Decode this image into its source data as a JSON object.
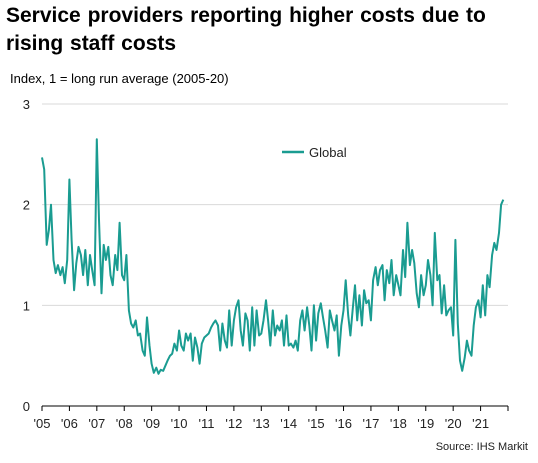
{
  "chart_data": {
    "type": "line",
    "title": "Service providers reporting higher costs due to rising staff costs",
    "ylabel": "Index, 1 = long run average (2005-20)",
    "source": "Source: IHS Markit",
    "ylim": [
      0,
      3
    ],
    "yticks": [
      "0",
      "1",
      "2",
      "3"
    ],
    "xlim": [
      2005,
      2021.9
    ],
    "xticks": [
      "'05",
      "'06",
      "'07",
      "'08",
      "'09",
      "'10",
      "'11",
      "'12",
      "'13",
      "'14",
      "'15",
      "'16",
      "'17",
      "'18",
      "'19",
      "'20",
      "'21"
    ],
    "grid": true,
    "legend_position": "top-center",
    "series": [
      {
        "name": "Global",
        "color": "#1a9c91",
        "x": [
          2005.0,
          2005.08,
          2005.17,
          2005.25,
          2005.33,
          2005.42,
          2005.5,
          2005.58,
          2005.67,
          2005.75,
          2005.83,
          2005.92,
          2006.0,
          2006.08,
          2006.17,
          2006.25,
          2006.33,
          2006.42,
          2006.5,
          2006.58,
          2006.67,
          2006.75,
          2006.83,
          2006.92,
          2007.0,
          2007.08,
          2007.17,
          2007.25,
          2007.33,
          2007.42,
          2007.5,
          2007.58,
          2007.67,
          2007.75,
          2007.83,
          2007.92,
          2008.0,
          2008.08,
          2008.17,
          2008.25,
          2008.33,
          2008.42,
          2008.5,
          2008.58,
          2008.67,
          2008.75,
          2008.83,
          2008.92,
          2009.0,
          2009.08,
          2009.17,
          2009.25,
          2009.33,
          2009.42,
          2009.5,
          2009.58,
          2009.67,
          2009.75,
          2009.83,
          2009.92,
          2010.0,
          2010.08,
          2010.17,
          2010.25,
          2010.33,
          2010.42,
          2010.5,
          2010.58,
          2010.67,
          2010.75,
          2010.83,
          2010.92,
          2011.0,
          2011.08,
          2011.17,
          2011.25,
          2011.33,
          2011.42,
          2011.5,
          2011.58,
          2011.67,
          2011.75,
          2011.83,
          2011.92,
          2012.0,
          2012.08,
          2012.17,
          2012.25,
          2012.33,
          2012.42,
          2012.5,
          2012.58,
          2012.67,
          2012.75,
          2012.83,
          2012.92,
          2013.0,
          2013.08,
          2013.17,
          2013.25,
          2013.33,
          2013.42,
          2013.5,
          2013.58,
          2013.67,
          2013.75,
          2013.83,
          2013.92,
          2014.0,
          2014.08,
          2014.17,
          2014.25,
          2014.33,
          2014.42,
          2014.5,
          2014.58,
          2014.67,
          2014.75,
          2014.83,
          2014.92,
          2015.0,
          2015.08,
          2015.17,
          2015.25,
          2015.33,
          2015.42,
          2015.5,
          2015.58,
          2015.67,
          2015.75,
          2015.83,
          2015.92,
          2016.0,
          2016.08,
          2016.17,
          2016.25,
          2016.33,
          2016.42,
          2016.5,
          2016.58,
          2016.67,
          2016.75,
          2016.83,
          2016.92,
          2017.0,
          2017.08,
          2017.17,
          2017.25,
          2017.33,
          2017.42,
          2017.5,
          2017.58,
          2017.67,
          2017.75,
          2017.83,
          2017.92,
          2018.0,
          2018.08,
          2018.17,
          2018.25,
          2018.33,
          2018.42,
          2018.5,
          2018.58,
          2018.67,
          2018.75,
          2018.83,
          2018.92,
          2019.0,
          2019.08,
          2019.17,
          2019.25,
          2019.33,
          2019.42,
          2019.5,
          2019.58,
          2019.67,
          2019.75,
          2019.83,
          2019.92,
          2020.0,
          2020.08,
          2020.17,
          2020.25,
          2020.33,
          2020.42,
          2020.5,
          2020.58,
          2020.67,
          2020.75,
          2020.83,
          2020.92,
          2021.0,
          2021.08,
          2021.17,
          2021.25,
          2021.33,
          2021.42,
          2021.5,
          2021.58,
          2021.67,
          2021.75,
          2021.83
        ],
        "values": [
          2.47,
          2.35,
          1.6,
          1.75,
          2.0,
          1.45,
          1.32,
          1.4,
          1.3,
          1.38,
          1.22,
          1.45,
          2.25,
          1.65,
          1.15,
          1.42,
          1.58,
          1.5,
          1.3,
          1.55,
          1.2,
          1.5,
          1.35,
          1.2,
          2.65,
          1.85,
          1.12,
          1.6,
          1.45,
          1.58,
          1.3,
          1.2,
          1.5,
          1.35,
          1.82,
          1.3,
          1.25,
          1.5,
          0.95,
          0.82,
          0.78,
          0.85,
          0.7,
          0.72,
          0.55,
          0.5,
          0.88,
          0.6,
          0.42,
          0.33,
          0.38,
          0.32,
          0.36,
          0.35,
          0.4,
          0.45,
          0.5,
          0.52,
          0.62,
          0.55,
          0.75,
          0.6,
          0.55,
          0.72,
          0.65,
          0.72,
          0.45,
          0.68,
          0.58,
          0.42,
          0.62,
          0.68,
          0.7,
          0.72,
          0.78,
          0.82,
          0.85,
          0.8,
          0.55,
          0.82,
          0.65,
          0.58,
          0.95,
          0.6,
          0.85,
          0.98,
          1.05,
          0.75,
          0.6,
          0.92,
          0.85,
          0.55,
          0.98,
          0.6,
          0.95,
          0.7,
          0.72,
          0.85,
          1.05,
          0.85,
          0.6,
          0.95,
          0.7,
          0.8,
          0.75,
          0.85,
          0.6,
          0.9,
          0.6,
          0.62,
          0.58,
          0.65,
          0.55,
          0.85,
          0.95,
          0.75,
          0.98,
          0.8,
          0.55,
          1.0,
          0.65,
          0.92,
          1.02,
          0.88,
          0.75,
          0.58,
          0.95,
          0.85,
          0.75,
          0.9,
          0.5,
          0.8,
          0.95,
          1.25,
          0.9,
          0.7,
          0.95,
          1.2,
          0.85,
          1.1,
          0.8,
          1.15,
          1.02,
          1.05,
          0.85,
          1.25,
          1.38,
          1.2,
          1.35,
          1.4,
          1.05,
          1.35,
          1.22,
          1.45,
          1.1,
          1.3,
          1.2,
          1.1,
          1.55,
          1.28,
          1.82,
          1.4,
          1.55,
          1.42,
          1.12,
          0.98,
          1.3,
          1.1,
          1.2,
          1.45,
          1.3,
          1.0,
          1.72,
          1.25,
          1.3,
          0.92,
          1.2,
          0.9,
          0.95,
          0.98,
          0.7,
          1.65,
          0.82,
          0.45,
          0.35,
          0.48,
          0.65,
          0.55,
          0.5,
          0.8,
          0.98,
          1.05,
          0.88,
          1.2,
          0.9,
          1.3,
          1.18,
          1.5,
          1.62,
          1.55,
          1.72,
          2.0,
          2.05
        ]
      }
    ]
  }
}
